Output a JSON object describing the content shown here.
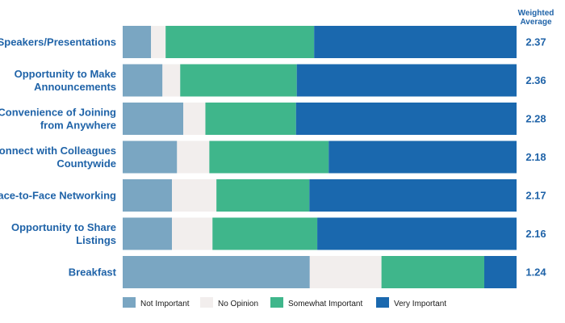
{
  "chart_data": {
    "type": "bar",
    "orientation": "horizontal",
    "stacked": true,
    "normalized": true,
    "value_unit": "percent",
    "categories": [
      "Speakers/Presentations",
      "Opportunity to Make Announcements",
      "Convenience of Joining from Anywhere",
      "Connect with Colleagues Countywide",
      "Face-to-Face Networking",
      "Opportunity to Share Listings",
      "Breakfast"
    ],
    "category_display_lines": [
      [
        "Speakers/Presentations"
      ],
      [
        "Opportunity to Make",
        "Announcements"
      ],
      [
        "Convenience of Joining",
        "from Anywhere"
      ],
      [
        "Connect with Colleagues",
        "Countywide"
      ],
      [
        "Face-to-Face Networking"
      ],
      [
        "Opportunity to Share",
        "Listings"
      ],
      [
        "Breakfast"
      ]
    ],
    "series": [
      {
        "name": "Not Important",
        "color": "#7aa6c2",
        "values": [
          7.2,
          10.1,
          15.4,
          13.8,
          12.5,
          12.5,
          47.5
        ]
      },
      {
        "name": "No Opinion",
        "color": "#f2eeed",
        "values": [
          3.7,
          4.5,
          5.6,
          8.2,
          11.3,
          10.3,
          18.2
        ]
      },
      {
        "name": "Somewhat Important",
        "color": "#3fb68b",
        "values": [
          37.7,
          29.6,
          23.0,
          30.3,
          23.6,
          26.6,
          26.1
        ]
      },
      {
        "name": "Very Important",
        "color": "#1a68ae",
        "values": [
          51.4,
          55.8,
          56.0,
          47.7,
          52.6,
          50.6,
          8.2
        ]
      }
    ],
    "weighted_average": {
      "header": [
        "Weighted",
        "Average"
      ],
      "values": [
        "2.37",
        "2.36",
        "2.28",
        "2.18",
        "2.17",
        "2.16",
        "1.24"
      ]
    },
    "legend_position": "bottom",
    "grid": false,
    "xlim": [
      0,
      100
    ]
  }
}
